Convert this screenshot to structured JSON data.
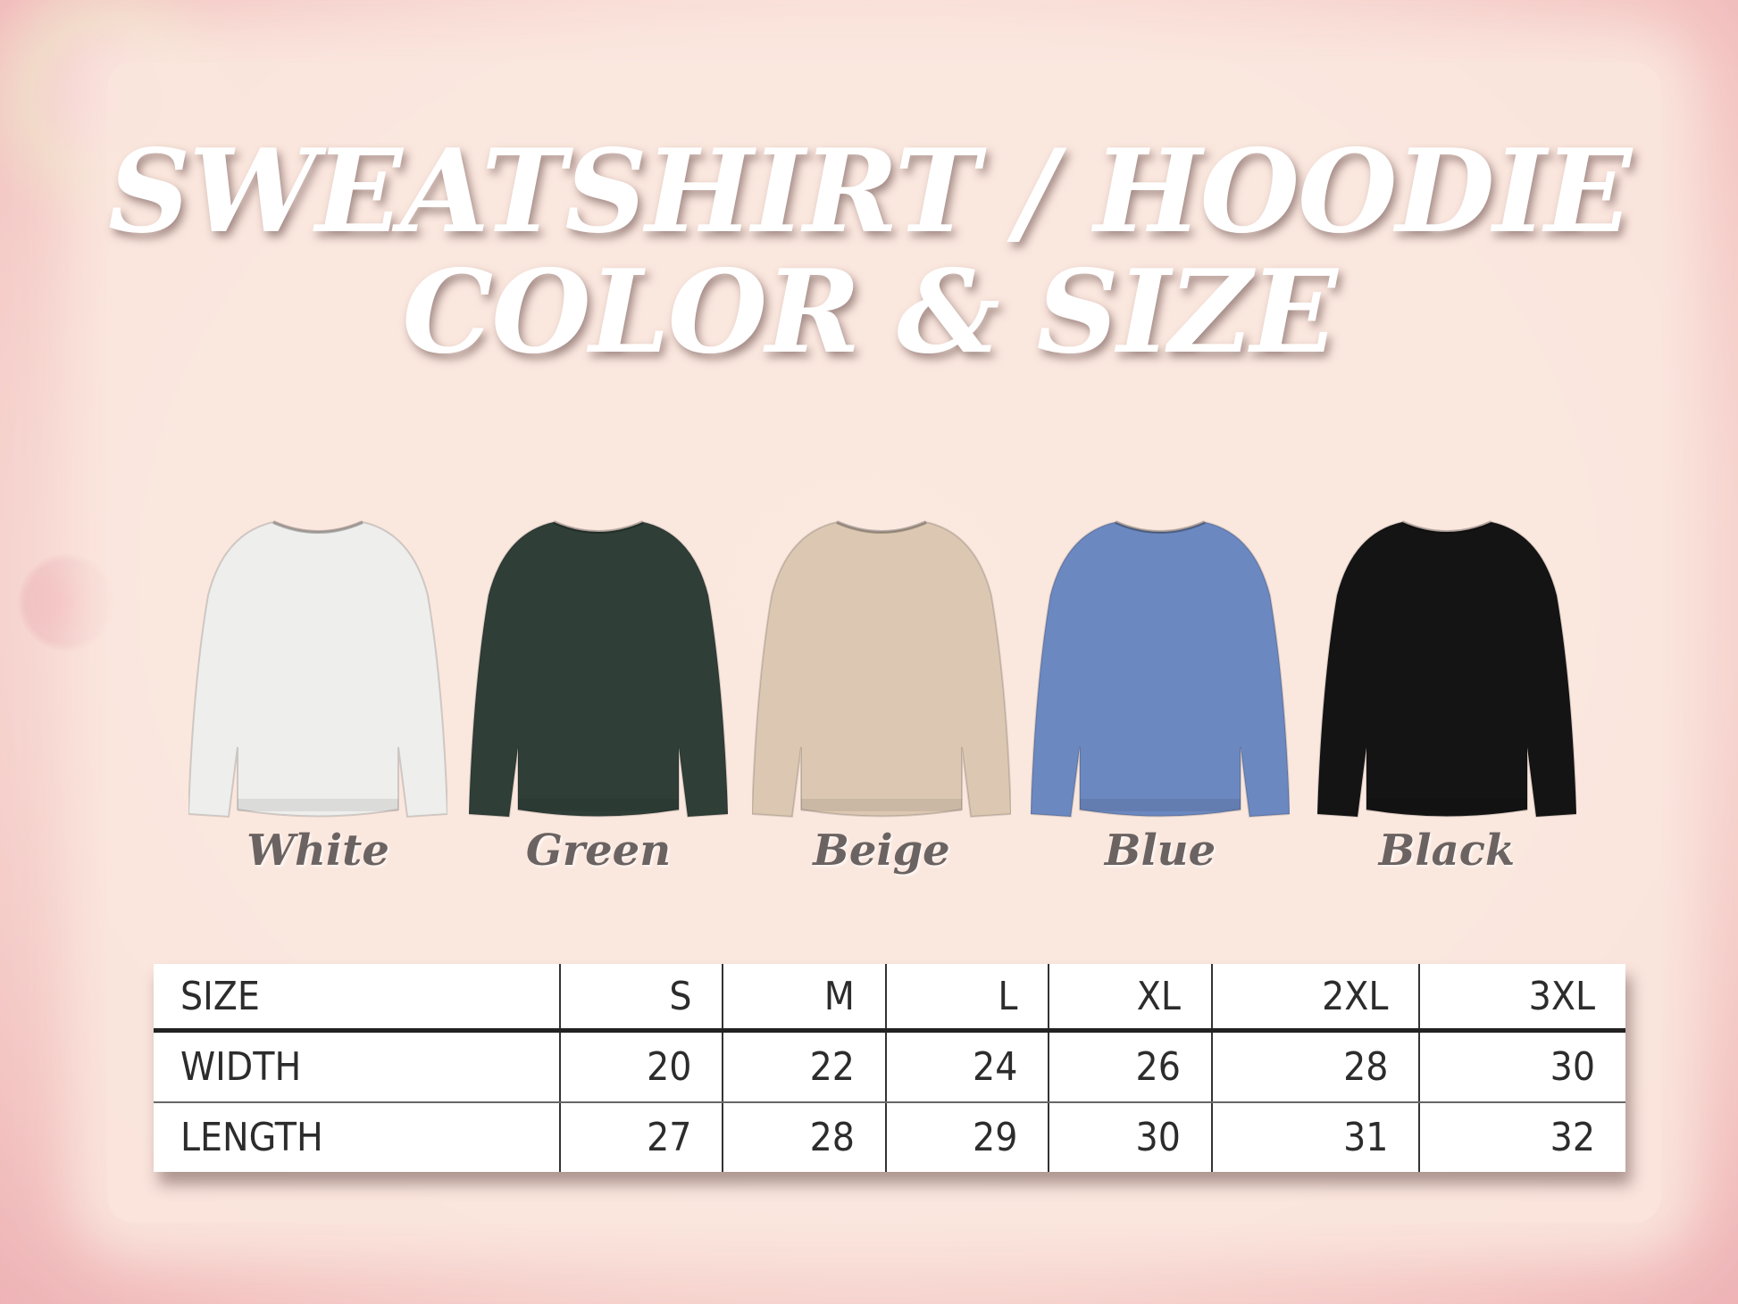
{
  "title": {
    "line1": "SWEATSHIRT / HOODIE",
    "line2": "COLOR & SIZE"
  },
  "colors": [
    {
      "label": "White",
      "hex": "#eeeeec"
    },
    {
      "label": "Green",
      "hex": "#2f3f38"
    },
    {
      "label": "Beige",
      "hex": "#dcc8b2"
    },
    {
      "label": "Blue",
      "hex": "#6c88c0"
    },
    {
      "label": "Black",
      "hex": "#141414"
    }
  ],
  "size_table": {
    "header": [
      "SIZE",
      "S",
      "M",
      "L",
      "XL",
      "2XL",
      "3XL"
    ],
    "rows": [
      [
        "WIDTH",
        "20",
        "22",
        "24",
        "26",
        "28",
        "30"
      ],
      [
        "LENGTH",
        "27",
        "28",
        "29",
        "30",
        "31",
        "32"
      ]
    ]
  }
}
